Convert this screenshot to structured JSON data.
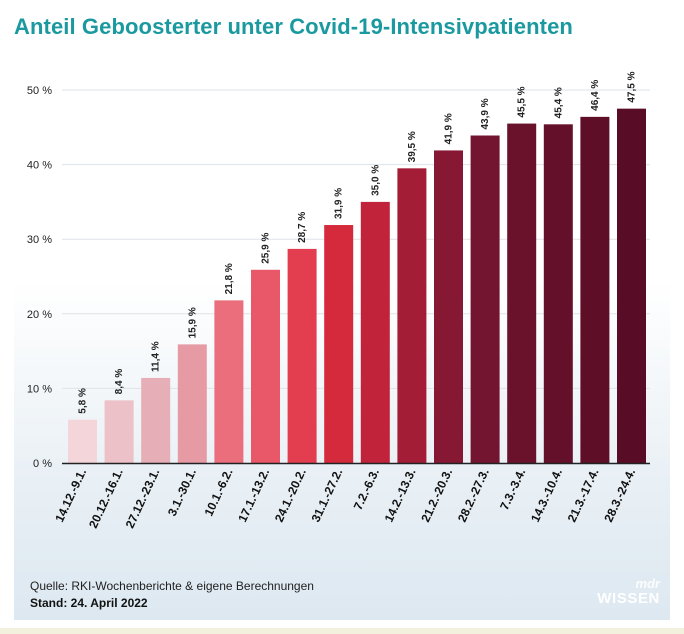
{
  "title": "Anteil Geboosterter unter Covid-19-Intensivpatienten",
  "source": "Quelle: RKI-Wochenberichte & eigene Berechnungen",
  "stand": "Stand: 24. April 2022",
  "logo": {
    "brand": "mdr",
    "word": "WISSEN"
  },
  "colors": {
    "title": "#1a9aa0",
    "bars": [
      "#f4d6da",
      "#ecc1c7",
      "#e6aeb6",
      "#e59aa4",
      "#ea6e7c",
      "#e95868",
      "#e33e50",
      "#d42a3c",
      "#c1243a",
      "#a31d36",
      "#861834",
      "#731530",
      "#6a122c",
      "#64102a",
      "#5e0e27",
      "#580c25",
      "#510a22"
    ]
  },
  "chart_data": {
    "type": "bar",
    "categories": [
      "14.12.-9.1.",
      "20.12.-16.1.",
      "27.12.-23.1.",
      "3.1.-30.1.",
      "10.1.-6.2.",
      "17.1.-13.2.",
      "24.1.-20.2.",
      "31.1.-27.2.",
      "7.2.-6.3.",
      "14.2.-13.3.",
      "21.2.-20.3.",
      "28.2.-27.3.",
      "7.3.-3.4.",
      "14.3.-10.4.",
      "21.3.-17.4.",
      "28.3.-24.4."
    ],
    "values": [
      5.8,
      8.4,
      11.4,
      15.9,
      21.8,
      25.9,
      28.7,
      31.9,
      35.0,
      39.5,
      41.9,
      43.9,
      45.5,
      45.4,
      46.4,
      47.5
    ],
    "value_labels": [
      "5,8 %",
      "8,4 %",
      "11,4 %",
      "15,9 %",
      "21,8 %",
      "25,9 %",
      "28,7 %",
      "31,9 %",
      "35,0 %",
      "39,5 %",
      "41,9 %",
      "43,9 %",
      "45,5 %",
      "45,4 %",
      "46,4 %",
      "47,5 %"
    ],
    "y_ticks": [
      0,
      10,
      20,
      30,
      40,
      50
    ],
    "y_tick_labels": [
      "0 %",
      "10 %",
      "20 %",
      "30 %",
      "40 %",
      "50 %"
    ],
    "ylim": [
      0,
      50
    ],
    "grid": true,
    "legend": "none"
  }
}
